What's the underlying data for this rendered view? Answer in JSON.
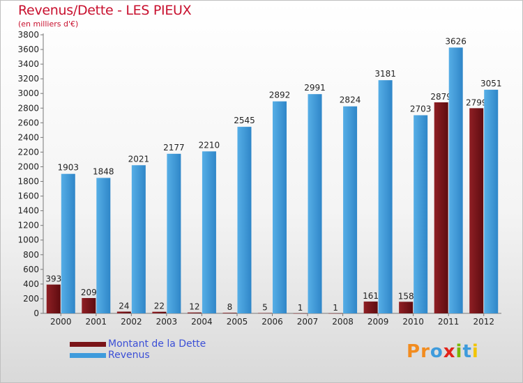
{
  "title": "Revenus/Dette - LES PIEUX",
  "subtitle": "(en milliers d'€)",
  "colors": {
    "dette": "#7a1418",
    "revenus": "#3e9bdc",
    "title": "#c8102e",
    "legend_text": "#3b4fd6"
  },
  "legend": [
    {
      "label": "Montant de la Dette",
      "color": "#7a1418"
    },
    {
      "label": "Revenus",
      "color": "#3e9bdc"
    }
  ],
  "logo": {
    "text": "Proxiti",
    "letters": [
      {
        "ch": "P",
        "color": "#f28c1f"
      },
      {
        "ch": "r",
        "color": "#f28c1f"
      },
      {
        "ch": "o",
        "color": "#3e9bdc"
      },
      {
        "ch": "x",
        "color": "#e2231a"
      },
      {
        "ch": "i",
        "color": "#7ab800"
      },
      {
        "ch": "t",
        "color": "#3e9bdc"
      },
      {
        "ch": "i",
        "color": "#f2c500"
      }
    ]
  },
  "chart_data": {
    "type": "bar",
    "title": "Revenus/Dette - LES PIEUX",
    "subtitle": "(en milliers d'€)",
    "categories": [
      "2000",
      "2001",
      "2002",
      "2003",
      "2004",
      "2005",
      "2006",
      "2007",
      "2008",
      "2009",
      "2010",
      "2011",
      "2012"
    ],
    "series": [
      {
        "name": "Montant de la Dette",
        "values": [
          393,
          209,
          24,
          22,
          12,
          8,
          5,
          1,
          1,
          161,
          158,
          2879,
          2799
        ]
      },
      {
        "name": "Revenus",
        "values": [
          1903,
          1848,
          2021,
          2177,
          2210,
          2545,
          2892,
          2991,
          2824,
          3181,
          2703,
          3626,
          3051
        ]
      }
    ],
    "ylim": [
      0,
      3800
    ],
    "yticks": [
      0,
      200,
      400,
      600,
      800,
      1000,
      1200,
      1400,
      1600,
      1800,
      2000,
      2200,
      2400,
      2600,
      2800,
      3000,
      3200,
      3400,
      3600,
      3800
    ],
    "grid": false,
    "legend_position": "bottom-left"
  }
}
